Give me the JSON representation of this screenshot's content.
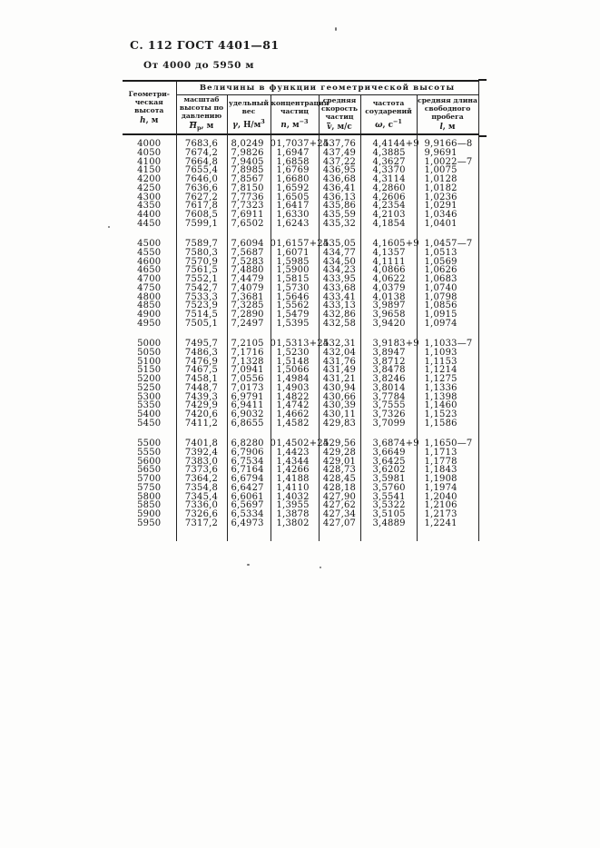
{
  "page": {
    "doc_header": "С. 112 ГОСТ 4401—81",
    "range_caption": "От 4000 до 5950 м"
  },
  "table": {
    "span_header": "Величины в функции геометрической высоты",
    "col_height": {
      "l1": "Геометри-",
      "l2": "ческая",
      "l3": "высота",
      "sym": "h",
      "sym_rest": ", м"
    },
    "col_hp": {
      "l1": "масштаб",
      "l2": "высоты по",
      "l3": "давлению",
      "sym": "H",
      "sym_sub": "p",
      "sym_rest": ", м"
    },
    "col_gamma": {
      "l1": "удельный",
      "l2": "вес",
      "sym": "γ",
      "sym_rest": ", Н/м",
      "sym_sup": "3"
    },
    "col_n": {
      "l1": "концентрация",
      "l2": "частиц",
      "sym": "n",
      "sym_rest": ", м",
      "sym_sup": "−3"
    },
    "col_v": {
      "l1": "средняя",
      "l2": "скорость",
      "l3": "частиц",
      "sym": "v",
      "sym_rest": ", м/с"
    },
    "col_omega": {
      "l1": "частота",
      "l2": "соударений",
      "sym": "ω",
      "sym_rest": ", с",
      "sym_sup": "−1"
    },
    "col_l": {
      "l1": "средняя длина",
      "l2": "свободного",
      "l3": "пробега",
      "sym": "l",
      "sym_rest": ", м"
    },
    "blocks": [
      [
        [
          "4000",
          "7683,6",
          "8,0249  0",
          "1,7037+25",
          "437,76",
          "4,4144+9",
          "9,9166—8"
        ],
        [
          "4050",
          "7674,2",
          "7,9826",
          "1,6947",
          "437,49",
          "4,3885",
          "9,9691"
        ],
        [
          "4100",
          "7664,8",
          "7,9405",
          "1,6858",
          "437,22",
          "4,3627",
          "1,0022—7"
        ],
        [
          "4150",
          "7655,4",
          "7,8985",
          "1,6769",
          "436,95",
          "4,3370",
          "1,0075"
        ],
        [
          "4200",
          "7646,0",
          "7,8567",
          "1,6680",
          "436,68",
          "4,3114",
          "1,0128"
        ],
        [
          "4250",
          "7636,6",
          "7,8150",
          "1,6592",
          "436,41",
          "4,2860",
          "1,0182"
        ],
        [
          "4300",
          "7627,2",
          "7,7736",
          "1,6505",
          "436,13",
          "4,2606",
          "1,0236"
        ],
        [
          "4350",
          "7617,8",
          "7,7323",
          "1,6417",
          "435,86",
          "4,2354",
          "1,0291"
        ],
        [
          "4400",
          "7608,5",
          "7,6911",
          "1,6330",
          "435,59",
          "4,2103",
          "1,0346"
        ],
        [
          "4450",
          "7599,1",
          "7,6502",
          "1,6243",
          "435,32",
          "4,1854",
          "1,0401"
        ]
      ],
      [
        [
          "4500",
          "7589,7",
          "7,6094  0",
          "1,6157+25",
          "435,05",
          "4,1605+9",
          "1,0457—7"
        ],
        [
          "4550",
          "7580,3",
          "7,5687",
          "1,6071",
          "434,77",
          "4,1357",
          "1,0513"
        ],
        [
          "4600",
          "7570,9",
          "7,5283",
          "1,5985",
          "434,50",
          "4,1111",
          "1,0569"
        ],
        [
          "4650",
          "7561,5",
          "7,4880",
          "1,5900",
          "434,23",
          "4,0866",
          "1,0626"
        ],
        [
          "4700",
          "7552,1",
          "7,4479",
          "1,5815",
          "433,95",
          "4,0622",
          "1,0683"
        ],
        [
          "4750",
          "7542,7",
          "7,4079",
          "1,5730",
          "433,68",
          "4,0379",
          "1,0740"
        ],
        [
          "4800",
          "7533,3",
          "7,3681",
          "1,5646",
          "433,41",
          "4,0138",
          "1,0798"
        ],
        [
          "4850",
          "7523,9",
          "7,3285",
          "1,5562",
          "433,13",
          "3,9897",
          "1,0856"
        ],
        [
          "4900",
          "7514,5",
          "7,2890",
          "1,5479",
          "432,86",
          "3,9658",
          "1,0915"
        ],
        [
          "4950",
          "7505,1",
          "7,2497",
          "1,5395",
          "432,58",
          "3,9420",
          "1,0974"
        ]
      ],
      [
        [
          "5000",
          "7495,7",
          "7,2105  0",
          "1,5313+25",
          "432,31",
          "3,9183+9",
          "1,1033—7"
        ],
        [
          "5050",
          "7486,3",
          "7,1716",
          "1,5230",
          "432,04",
          "3,8947",
          "1,1093"
        ],
        [
          "5100",
          "7476,9",
          "7,1328",
          "1,5148",
          "431,76",
          "3,8712",
          "1,1153"
        ],
        [
          "5150",
          "7467,5",
          "7,0941",
          "1,5066",
          "431,49",
          "3,8478",
          "1,1214"
        ],
        [
          "5200",
          "7458,1",
          "7,0556",
          "1,4984",
          "431,21",
          "3,8246",
          "1,1275"
        ],
        [
          "5250",
          "7448,7",
          "7,0173",
          "1,4903",
          "430,94",
          "3,8014",
          "1,1336"
        ],
        [
          "5300",
          "7439,3",
          "6,9791",
          "1,4822",
          "430,66",
          "3,7784",
          "1,1398"
        ],
        [
          "5350",
          "7429,9",
          "6,9411",
          "1,4742",
          "430,39",
          "3,7555",
          "1,1460"
        ],
        [
          "5400",
          "7420,6",
          "6,9032",
          "1,4662",
          "430,11",
          "3,7326",
          "1,1523"
        ],
        [
          "5450",
          "7411,2",
          "6,8655",
          "1,4582",
          "429,83",
          "3,7099",
          "1,1586"
        ]
      ],
      [
        [
          "5500",
          "7401,8",
          "6,8280  0",
          "1,4502+25",
          "429,56",
          "3,6874+9",
          "1,1650—7"
        ],
        [
          "5550",
          "7392,4",
          "6,7906",
          "1,4423",
          "429,28",
          "3,6649",
          "1,1713"
        ],
        [
          "5600",
          "7383,0",
          "6,7534",
          "1,4344",
          "429,01",
          "3,6425",
          "1,1778"
        ],
        [
          "5650",
          "7373,6",
          "6,7164",
          "1,4266",
          "428,73",
          "3,6202",
          "1,1843"
        ],
        [
          "5700",
          "7364,2",
          "6,6794",
          "1,4188",
          "428,45",
          "3,5981",
          "1,1908"
        ],
        [
          "5750",
          "7354,8",
          "6,6427",
          "1,4110",
          "428,18",
          "3,5760",
          "1,1974"
        ],
        [
          "5800",
          "7345,4",
          "6,6061",
          "1,4032",
          "427,90",
          "3,5541",
          "1,2040"
        ],
        [
          "5850",
          "7336,0",
          "6,5697",
          "1,3955",
          "427,62",
          "3,5322",
          "1,2106"
        ],
        [
          "5900",
          "7326,6",
          "6,5334",
          "1,3878",
          "427,34",
          "3,5105",
          "1,2173"
        ],
        [
          "5950",
          "7317,2",
          "6,4973",
          "1,3802",
          "427,07",
          "3,4889",
          "1,2241"
        ]
      ]
    ]
  }
}
